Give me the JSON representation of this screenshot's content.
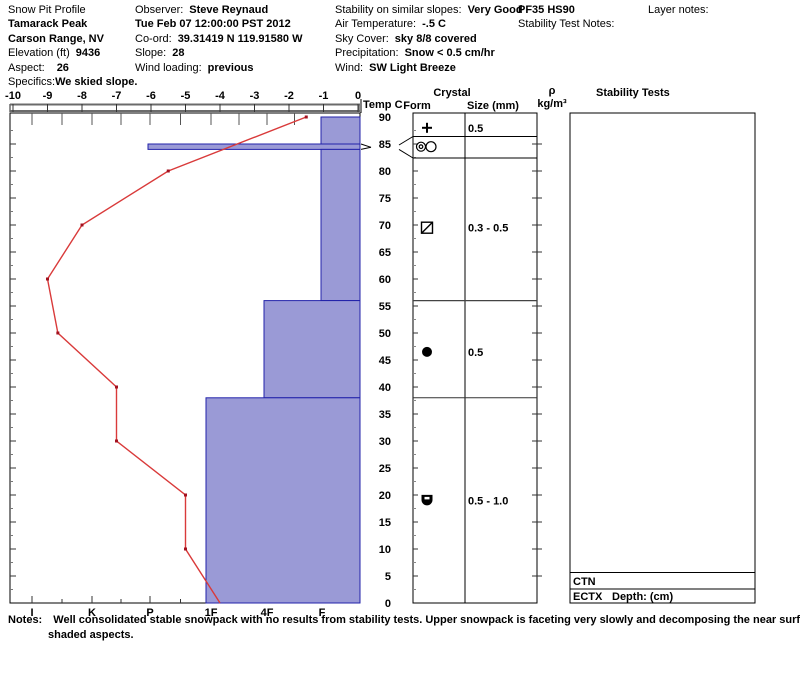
{
  "header": {
    "col1": {
      "app_title": "Snow Pit Profile",
      "peak": "Tamarack Peak",
      "range": "Carson Range, NV",
      "elevation_label": "Elevation (ft)",
      "elevation_value": "9436",
      "aspect_label": "Aspect:",
      "aspect_value": "26",
      "specifics_label": "Specifics:",
      "specifics_value": "We skied slope."
    },
    "col2": {
      "observer_label": "Observer:",
      "observer_value": "Steve Reynaud",
      "datetime": "Tue Feb 07 12:00:00 PST 2012",
      "coord_label": "Co-ord:",
      "coord_value": "39.31419 N 119.91580 W",
      "slope_label": "Slope:",
      "slope_value": "28",
      "wind_loading_label": "Wind loading:",
      "wind_loading_value": "previous"
    },
    "col3": {
      "stability_label": "Stability on similar slopes:",
      "stability_value": "Very Good",
      "air_temp_label": "Air Temperature:",
      "air_temp_value": "-.5 C",
      "sky_label": "Sky Cover:",
      "sky_value": "sky 8/8 covered",
      "precip_label": "Precipitation:",
      "precip_value": "Snow < 0.5 cm/hr",
      "wind_label": "Wind:",
      "wind_value": "SW Light Breeze"
    },
    "col4": {
      "pit_code": "PF35 HS90",
      "stability_test_notes_label": "Stability Test Notes:"
    },
    "col5": {
      "layer_notes_label": "Layer notes:"
    }
  },
  "chart_data": {
    "type": "composite",
    "temperature_profile": {
      "type": "line",
      "x_label": "Temp C",
      "x_ticks": [
        -10,
        -9,
        -8,
        -7,
        -6,
        -5,
        -4,
        -3,
        -2,
        -1,
        0
      ],
      "x_range": [
        -10,
        0
      ],
      "line_color": "#d93a3a",
      "marker_color": "#a3111f",
      "points": [
        {
          "depth": 90,
          "temp": -1.5
        },
        {
          "depth": 80,
          "temp": -5.5
        },
        {
          "depth": 70,
          "temp": -8.0
        },
        {
          "depth": 60,
          "temp": -9.0
        },
        {
          "depth": 50,
          "temp": -8.7
        },
        {
          "depth": 40,
          "temp": -7.0
        },
        {
          "depth": 30,
          "temp": -7.0
        },
        {
          "depth": 20,
          "temp": -5.0
        },
        {
          "depth": 10,
          "temp": -5.0
        },
        {
          "depth": 0,
          "temp": -4.0
        }
      ]
    },
    "hardness_profile": {
      "type": "bar",
      "fill_color": "#9a9ad6",
      "stroke_color": "#2222aa",
      "scale_labels": [
        "I",
        "K",
        "P",
        "1F",
        "4F",
        "F"
      ],
      "depth_range": [
        0,
        90
      ],
      "depth_tick_step": 5,
      "layers": [
        {
          "depth_from": 90,
          "depth_to": 85,
          "hardness": "F"
        },
        {
          "depth_from": 85,
          "depth_to": 84,
          "hardness": "P"
        },
        {
          "depth_from": 84,
          "depth_to": 56,
          "hardness": "F"
        },
        {
          "depth_from": 56,
          "depth_to": 38,
          "hardness": "4F"
        },
        {
          "depth_from": 38,
          "depth_to": 0,
          "hardness": "1F"
        }
      ]
    }
  },
  "right_panel": {
    "temp_header": "Temp C",
    "crystal_header": "Crystal",
    "form_header": "Form",
    "size_header": "Size (mm)",
    "density_header_line1": "ρ",
    "density_header_line2": "kg/m³",
    "stability_header": "Stability Tests",
    "depth_labels": [
      90,
      85,
      80,
      75,
      70,
      65,
      60,
      55,
      50,
      45,
      40,
      35,
      30,
      25,
      20,
      15,
      10,
      5,
      0
    ],
    "crystal_rows": [
      {
        "center_depth": 88,
        "form_icon": "plus-new-snow-icon",
        "size": "0.5"
      },
      {
        "center_depth": 84.5,
        "form_icon": "melt-crust-circles-icon",
        "size": ""
      },
      {
        "center_depth": 69.5,
        "form_icon": "facet-square-diagonal-icon",
        "size": "0.3 - 0.5"
      },
      {
        "center_depth": 46.5,
        "form_icon": "rounds-filled-circle-icon",
        "size": "0.5"
      },
      {
        "center_depth": 19,
        "form_icon": "mixed-filled-square-icon",
        "size": "0.5 - 1.0"
      }
    ],
    "stability_rows": [
      {
        "test": "CTN",
        "extra": ""
      },
      {
        "test": "ECTX",
        "extra": "Depth: (cm)"
      }
    ]
  },
  "notes": {
    "label": "Notes:",
    "line1": "Well consolidated stable snowpack with no results from stability tests.  Upper snowpack is faceting very slowly and decomposing the near surface crusts on",
    "line2": "shaded aspects."
  }
}
